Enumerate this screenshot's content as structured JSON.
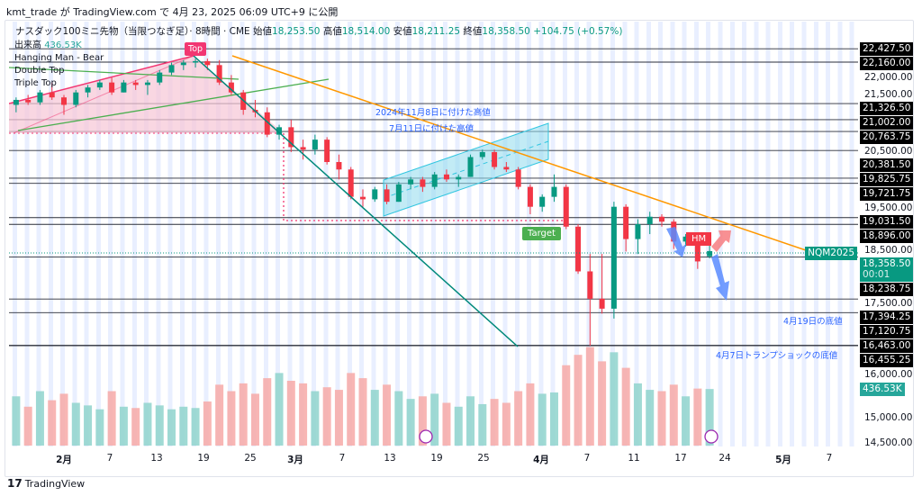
{
  "header": {
    "published": "kmt_trade が TradingView.com で 4月 23, 2025 06:09 UTC+9 に公開"
  },
  "symbol": {
    "name": "ナスダック100ミニ先物（当限つなぎ足）· 8時間 · CME",
    "open_label": "始値",
    "open": "18,253.50",
    "high_label": "高値",
    "high": "18,514.00",
    "low_label": "安値",
    "low": "18,211.25",
    "close_label": "終値",
    "close": "18,358.50",
    "change": "+104.75 (+0.57%)"
  },
  "legend": {
    "volume_label": "出来高",
    "volume": "436.53K",
    "items": [
      "Hanging Man - Bear",
      "Double Top",
      "Triple Top"
    ]
  },
  "annotations": {
    "top": "Top",
    "target": "Target",
    "hm": "HM",
    "nov8": "2024年11月8日に付けた高値",
    "jul11": "7月11日に付けた高値",
    "apr19": "4月19日の底値",
    "apr7": "4月7日トランプショックの底値"
  },
  "price_axis": {
    "ticks": [
      "22,000.00",
      "21,500.00",
      "20,500.00",
      "19,500.00",
      "18,500.00",
      "17,500.00",
      "16,000.00",
      "15,000.00",
      "14,500.00"
    ],
    "levels": [
      "22,427.50",
      "22,160.00",
      "21,326.50",
      "21,002.00",
      "20,763.75",
      "20,381.50",
      "19,825.75",
      "19,721.75",
      "19,031.50",
      "18,896.00",
      "18,238.75",
      "17,394.25",
      "17,120.75",
      "16,463.00",
      "16,455.25"
    ],
    "symbol_tag": "NQM2025",
    "last_price": "18,358.50",
    "countdown": "00:01",
    "volume_tag": "436.53K"
  },
  "time_axis": [
    "2月",
    "7",
    "13",
    "19",
    "25",
    "3月",
    "7",
    "13",
    "19",
    "25",
    "4月",
    "7",
    "11",
    "17",
    "24",
    "5月",
    "7"
  ],
  "footer": {
    "brand": "TradingView"
  },
  "colors": {
    "up": "#089981",
    "down": "#f23645",
    "vol_up": "#8fd4cc",
    "vol_down": "#f7a9a7",
    "orange": "#ff9800",
    "teal": "#00897b"
  },
  "chart_data": {
    "type": "candlestick",
    "title": "ナスダック100ミニ先物（当限つなぎ足）8時間 CME",
    "ylim": [
      14500,
      22600
    ],
    "levels": [
      22427.5,
      22160,
      21326.5,
      21002,
      20763.75,
      20381.5,
      19825.75,
      19721.75,
      19031.5,
      18896,
      18238.75,
      17394.25,
      17120.75,
      16463,
      16455.25
    ],
    "dates": [
      "1/28",
      "1/29",
      "1/30",
      "1/31",
      "2/3",
      "2/4",
      "2/5",
      "2/6",
      "2/7",
      "2/10",
      "2/11",
      "2/12",
      "2/13",
      "2/14",
      "2/18",
      "2/19",
      "2/20",
      "2/21",
      "2/24",
      "2/25",
      "2/26",
      "2/27",
      "2/28",
      "3/3",
      "3/4",
      "3/5",
      "3/6",
      "3/7",
      "3/10",
      "3/11",
      "3/12",
      "3/13",
      "3/14",
      "3/17",
      "3/18",
      "3/19",
      "3/20",
      "3/21",
      "3/24",
      "3/25",
      "3/26",
      "3/27",
      "3/28",
      "3/31",
      "4/1",
      "4/2",
      "4/3",
      "4/4",
      "4/7",
      "4/8",
      "4/9",
      "4/10",
      "4/11",
      "4/14",
      "4/15",
      "4/16",
      "4/17",
      "4/21",
      "4/22"
    ],
    "ohlc": [
      [
        21300,
        21450,
        21150,
        21400
      ],
      [
        21400,
        21500,
        21300,
        21350
      ],
      [
        21350,
        21600,
        21300,
        21550
      ],
      [
        21550,
        21750,
        21400,
        21450
      ],
      [
        21450,
        21500,
        21100,
        21300
      ],
      [
        21300,
        21600,
        21250,
        21550
      ],
      [
        21550,
        21700,
        21450,
        21650
      ],
      [
        21650,
        21800,
        21600,
        21750
      ],
      [
        21750,
        21850,
        21500,
        21550
      ],
      [
        21550,
        21800,
        21550,
        21750
      ],
      [
        21750,
        21800,
        21600,
        21700
      ],
      [
        21700,
        21800,
        21500,
        21750
      ],
      [
        21750,
        22000,
        21700,
        21950
      ],
      [
        21950,
        22150,
        21900,
        22100
      ],
      [
        22100,
        22200,
        22000,
        22150
      ],
      [
        22150,
        22230,
        22050,
        22180
      ],
      [
        22180,
        22230,
        22000,
        22100
      ],
      [
        22100,
        22200,
        21700,
        21750
      ],
      [
        21750,
        21900,
        21500,
        21550
      ],
      [
        21550,
        21600,
        21100,
        21200
      ],
      [
        21200,
        21400,
        21050,
        21150
      ],
      [
        21150,
        21250,
        20650,
        20700
      ],
      [
        20700,
        20900,
        20600,
        20850
      ],
      [
        20850,
        21000,
        20350,
        20450
      ],
      [
        20450,
        20600,
        20200,
        20400
      ],
      [
        20400,
        20700,
        20300,
        20600
      ],
      [
        20600,
        20650,
        20100,
        20150
      ],
      [
        20150,
        20300,
        19800,
        20000
      ],
      [
        20000,
        20050,
        19400,
        19450
      ],
      [
        19450,
        19600,
        19250,
        19400
      ],
      [
        19400,
        19650,
        19350,
        19600
      ],
      [
        19600,
        19700,
        19300,
        19350
      ],
      [
        19350,
        19750,
        19350,
        19700
      ],
      [
        19700,
        19850,
        19600,
        19800
      ],
      [
        19800,
        19850,
        19550,
        19650
      ],
      [
        19650,
        19950,
        19600,
        19900
      ],
      [
        19900,
        20000,
        19750,
        19800
      ],
      [
        19800,
        19900,
        19650,
        19850
      ],
      [
        19850,
        20300,
        19850,
        20250
      ],
      [
        20250,
        20400,
        20200,
        20350
      ],
      [
        20350,
        20400,
        20000,
        20050
      ],
      [
        20050,
        20150,
        19950,
        20000
      ],
      [
        20000,
        20050,
        19600,
        19650
      ],
      [
        19650,
        19700,
        19100,
        19250
      ],
      [
        19250,
        19500,
        19150,
        19450
      ],
      [
        19450,
        19900,
        19350,
        19650
      ],
      [
        19650,
        19700,
        18800,
        18850
      ],
      [
        18850,
        18900,
        17900,
        17950
      ],
      [
        17950,
        18300,
        16455,
        17400
      ],
      [
        17400,
        18300,
        17100,
        17200
      ],
      [
        17200,
        19350,
        17000,
        19250
      ],
      [
        19250,
        19300,
        18350,
        18600
      ],
      [
        18600,
        19000,
        18300,
        18900
      ],
      [
        18900,
        19150,
        18700,
        19050
      ],
      [
        19050,
        19100,
        18850,
        18950
      ],
      [
        18950,
        19000,
        18400,
        18550
      ],
      [
        18550,
        18700,
        18450,
        18650
      ],
      [
        18650,
        18700,
        18000,
        18150
      ],
      [
        18253.5,
        18514,
        18211.25,
        18358.5
      ]
    ],
    "volume_k": [
      380,
      300,
      420,
      350,
      400,
      330,
      310,
      280,
      420,
      300,
      290,
      330,
      310,
      280,
      300,
      290,
      340,
      470,
      420,
      480,
      400,
      520,
      560,
      500,
      480,
      420,
      450,
      430,
      560,
      520,
      430,
      470,
      420,
      360,
      380,
      400,
      330,
      300,
      380,
      320,
      360,
      330,
      420,
      480,
      400,
      410,
      620,
      700,
      760,
      650,
      720,
      600,
      480,
      430,
      420,
      470,
      380,
      440,
      436.53
    ]
  }
}
